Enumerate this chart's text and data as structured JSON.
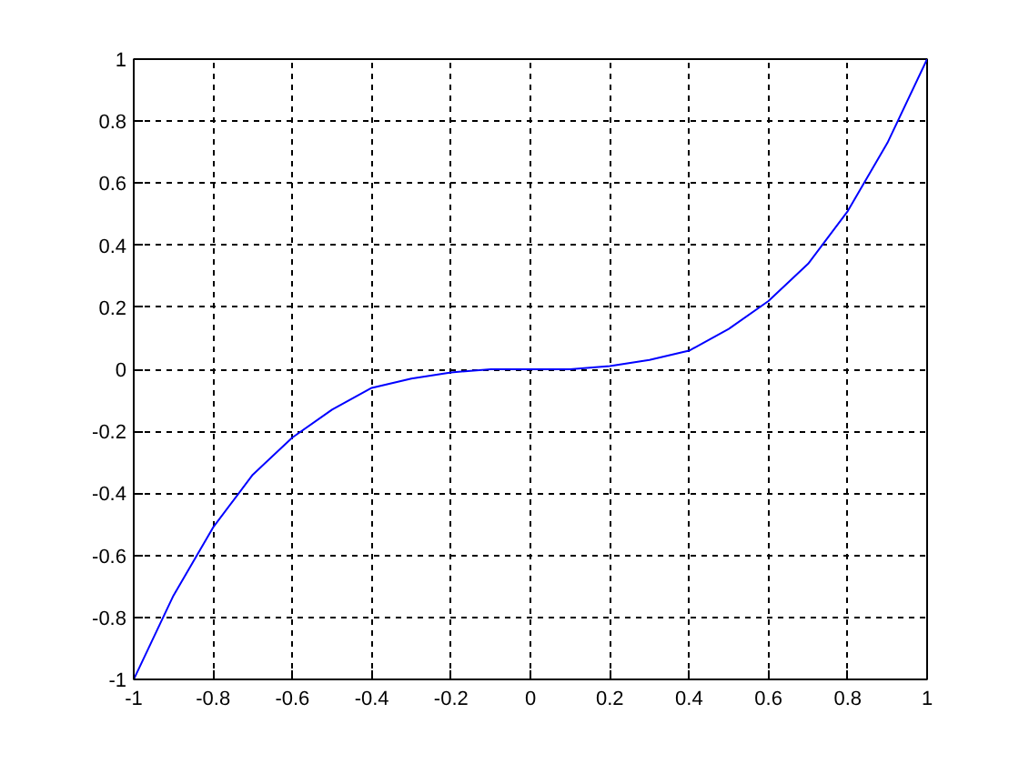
{
  "chart_data": {
    "type": "line",
    "x": [
      -1,
      -0.9,
      -0.8,
      -0.7,
      -0.6,
      -0.5,
      -0.4,
      -0.3,
      -0.2,
      -0.1,
      0,
      0.1,
      0.2,
      0.3,
      0.4,
      0.5,
      0.6,
      0.7,
      0.8,
      0.9,
      1
    ],
    "series": [
      {
        "color": "#0000ff",
        "values": [
          -1,
          -0.73,
          -0.51,
          -0.34,
          -0.22,
          -0.13,
          -0.06,
          -0.03,
          -0.01,
          0,
          0,
          0,
          0.01,
          0.03,
          0.06,
          0.13,
          0.22,
          0.34,
          0.51,
          0.73,
          1
        ]
      }
    ],
    "xlim": [
      -1,
      1
    ],
    "ylim": [
      -1,
      1
    ],
    "xticks": [
      -1,
      -0.8,
      -0.6,
      -0.4,
      -0.2,
      0,
      0.2,
      0.4,
      0.6,
      0.8,
      1
    ],
    "yticks": [
      -1,
      -0.8,
      -0.6,
      -0.4,
      -0.2,
      0,
      0.2,
      0.4,
      0.6,
      0.8,
      1
    ],
    "grid": true,
    "marker": "none",
    "line_style": "solid"
  }
}
